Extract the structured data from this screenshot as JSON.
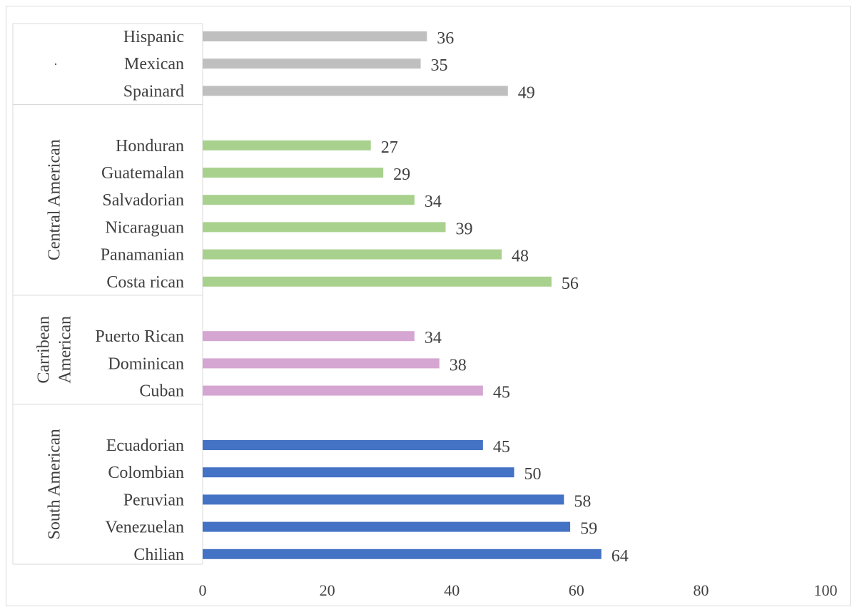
{
  "chart_data": {
    "type": "bar",
    "orientation": "horizontal",
    "xlim": [
      0,
      100
    ],
    "x_ticks": [
      "0",
      "20",
      "40",
      "60",
      "80",
      "100"
    ],
    "grid": false,
    "legend": "none",
    "show_data_labels": true,
    "groups": [
      {
        "name": "",
        "aux_mark": "·",
        "color": "#bfbfbf",
        "categories": [
          "Hispanic",
          "Mexican",
          "Spainard"
        ],
        "values": [
          36,
          35,
          49
        ]
      },
      {
        "name": "Central American",
        "color": "#a9d18e",
        "categories": [
          "Honduran",
          "Guatemalan",
          "Salvadorian",
          "Nicaraguan",
          "Panamanian",
          "Costa rican"
        ],
        "values": [
          27,
          29,
          34,
          39,
          48,
          56
        ]
      },
      {
        "name": "Carribean American",
        "name_lines": [
          "Carribean",
          "American"
        ],
        "color": "#d5a6d2",
        "categories": [
          "Puerto Rican",
          "Dominican",
          "Cuban"
        ],
        "values": [
          34,
          38,
          45
        ]
      },
      {
        "name": "South American",
        "color": "#4472c4",
        "categories": [
          "Ecuadorian",
          "Colombian",
          "Peruvian",
          "Venezuelan",
          "Chilian"
        ],
        "values": [
          45,
          50,
          58,
          59,
          64
        ]
      }
    ]
  }
}
